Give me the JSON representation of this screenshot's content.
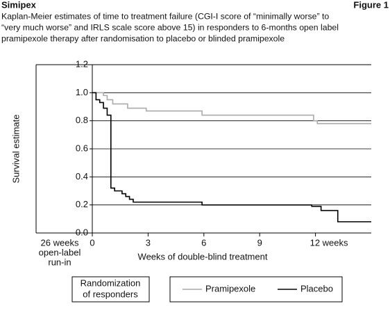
{
  "chart_data": {
    "type": "line",
    "header_left": "Simipex",
    "header_right": "Figure 1",
    "title": [
      "Kaplan-Meier estimates of time to treatment failure (CGI-I score of “minimally worse” to",
      "“very much worse” and IRLS scale score above 15) in responders to 6-months open label",
      "pramipexole therapy after randomisation to placebo or blinded pramipexole"
    ],
    "ylabel": "Survival estimate",
    "xlabel": "Weeks of double-blind treatment",
    "run_in_label": [
      "26 weeks",
      "open-label",
      "run-in"
    ],
    "randomization_label": [
      "Randomization",
      "of responders"
    ],
    "xlim": [
      0,
      15
    ],
    "xticks": [
      0,
      3,
      6,
      9,
      {
        "value": 12,
        "label": "12 weeks"
      }
    ],
    "ylim": [
      0,
      1.2
    ],
    "yticks": [
      {
        "value": 0,
        "label": "0.0"
      },
      0.2,
      0.4,
      0.6,
      0.8,
      {
        "value": 1,
        "label": "1.0"
      },
      1.2
    ],
    "grid": true,
    "series": [
      {
        "name": "Pramipexole",
        "color": "#aaaaaa",
        "x": [
          0,
          0.6,
          0.6,
          0.8,
          0.8,
          1.1,
          1.1,
          1.9,
          1.9,
          2.9,
          2.9,
          5.9,
          5.9,
          11.9,
          11.9,
          12.1,
          12.1,
          15
        ],
        "values": [
          1.0,
          1.0,
          0.98,
          0.98,
          0.95,
          0.95,
          0.92,
          0.92,
          0.89,
          0.89,
          0.87,
          0.87,
          0.84,
          0.84,
          0.8,
          0.8,
          0.78,
          0.78
        ]
      },
      {
        "name": "Placebo",
        "color": "#000000",
        "x": [
          0,
          0.2,
          0.2,
          0.4,
          0.4,
          0.6,
          0.6,
          0.8,
          0.8,
          1.0,
          1.0,
          1.2,
          1.2,
          1.6,
          1.6,
          1.8,
          1.8,
          2.0,
          2.0,
          2.2,
          2.2,
          5.9,
          5.9,
          11.8,
          11.8,
          12.3,
          12.3,
          13.2,
          13.2,
          15
        ],
        "values": [
          1.0,
          1.0,
          0.95,
          0.95,
          0.93,
          0.93,
          0.89,
          0.89,
          0.84,
          0.84,
          0.32,
          0.32,
          0.3,
          0.3,
          0.28,
          0.28,
          0.26,
          0.26,
          0.24,
          0.24,
          0.22,
          0.22,
          0.2,
          0.2,
          0.19,
          0.19,
          0.16,
          0.16,
          0.08,
          0.08
        ]
      }
    ]
  }
}
